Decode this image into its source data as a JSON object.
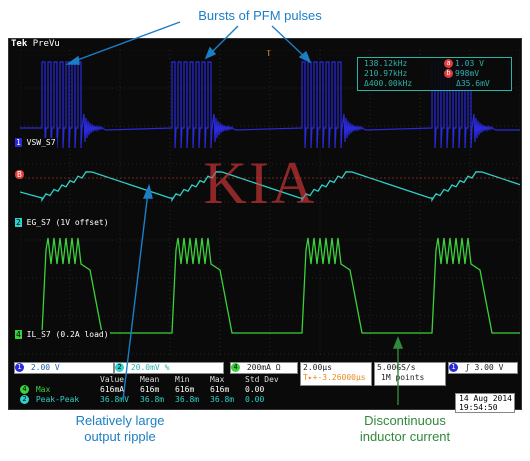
{
  "annotations": {
    "top": "Bursts of PFM pulses",
    "ripple_line1": "Relatively large",
    "ripple_line2": "output ripple",
    "current_line1": "Discontinuous",
    "current_line2": "inductor current"
  },
  "scope": {
    "brand": "Tek",
    "mode": "PreVu",
    "watermark": "KIA",
    "trigger_marker": "T"
  },
  "channels": {
    "ch1": {
      "label": "VSW_S7",
      "marker": "1",
      "color": "#2a2adb"
    },
    "chB": {
      "label": "B",
      "color": "#e03c3c"
    },
    "ch2": {
      "label": "EG_S7 (1V offset)",
      "marker": "2",
      "color": "#2fd1c8"
    },
    "ch4": {
      "label": "IL_S7 (0.2A load)",
      "marker": "4",
      "color": "#3cd13c"
    }
  },
  "measurements": {
    "row1": {
      "a_val": "138.12kHz",
      "b_label": "a",
      "b_val": "1.03 V"
    },
    "row2": {
      "a_val": "210.97kHz",
      "b_label": "b",
      "b_val": "998mV"
    },
    "row3": {
      "a_val": "Δ400.00kHz",
      "b_val": "Δ35.6mV"
    }
  },
  "settings": {
    "ch1_scale": "2.00 V",
    "ch2_scale": "20.0mV",
    "ch2_suffix": "%",
    "ch4_scale": "200mA",
    "ch4_suffix": "Ω",
    "timebase": "2.00μs",
    "trigger_pos": "T▸+-3.26000μs",
    "sample_rate": "5.00GS/s",
    "record_length": "1M points",
    "trigger_ch": "1",
    "trigger_slope": "ʃ",
    "trigger_level": "3.00 V"
  },
  "stats": {
    "headers": [
      "Value",
      "Mean",
      "Min",
      "Max",
      "Std Dev"
    ],
    "rows": [
      {
        "marker": "4",
        "name": "Max",
        "values": [
          "616mA",
          "616m",
          "616m",
          "616m",
          "0.00"
        ]
      },
      {
        "marker": "2",
        "name": "Peak-Peak",
        "values": [
          "36.8mV",
          "36.8m",
          "36.8m",
          "36.8m",
          "0.00"
        ]
      }
    ]
  },
  "datetime": {
    "date": "14 Aug 2014",
    "time": "19:54:50"
  },
  "footer_watermark": "KIA"
}
